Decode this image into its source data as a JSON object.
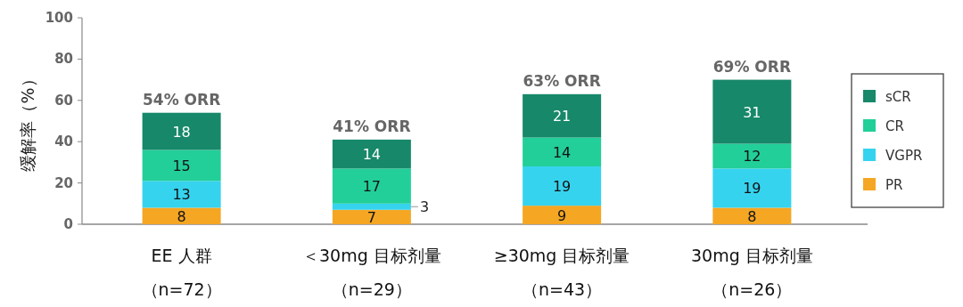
{
  "chart_data": {
    "type": "bar",
    "stacked": true,
    "ylabel": "缓解率（%）",
    "categories": [
      "EE 人群（n=72）",
      "＜30mg 目标剂量（n=29）",
      "≥30mg 目标剂量（n=43）",
      "30mg 目标剂量（n=26）"
    ],
    "series": [
      {
        "name": "PR",
        "color": "#f5a623",
        "values": [
          8,
          7,
          9,
          8
        ]
      },
      {
        "name": "VGPR",
        "color": "#36d3ef",
        "values": [
          13,
          3,
          19,
          19
        ]
      },
      {
        "name": "CR",
        "color": "#22cf98",
        "values": [
          15,
          17,
          14,
          12
        ]
      },
      {
        "name": "sCR",
        "color": "#17886a",
        "values": [
          18,
          14,
          21,
          31
        ]
      }
    ],
    "totals": [
      "54% ORR",
      "41% ORR",
      "63% ORR",
      "69% ORR"
    ],
    "data_labels": true,
    "legend": "right",
    "grid": false,
    "ylim": [
      0,
      100
    ],
    "yticks": [
      0,
      20,
      40,
      60,
      80,
      100
    ]
  }
}
